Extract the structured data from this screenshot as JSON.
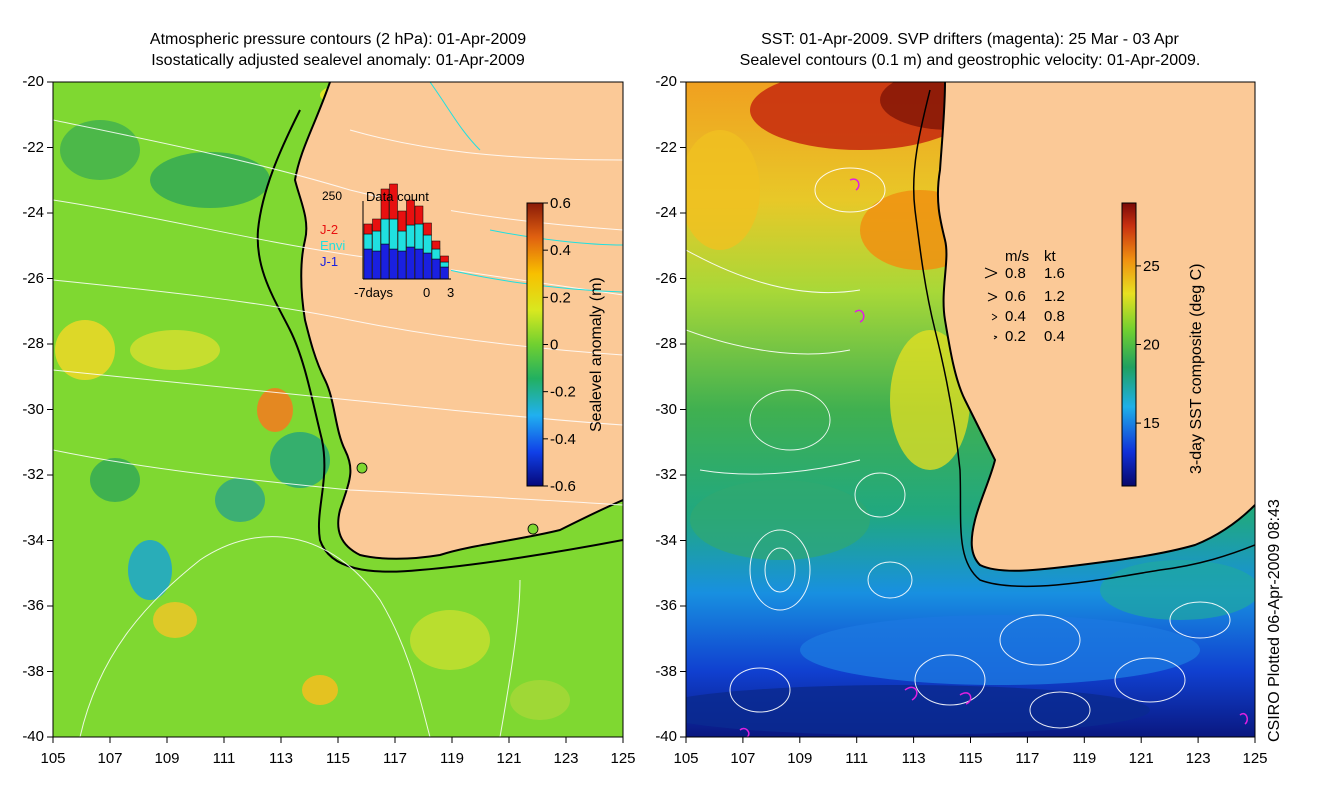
{
  "left_panel": {
    "title_line1": "Atmospheric pressure contours (2 hPa): 01-Apr-2009",
    "title_line2": "Isostatically adjusted sealevel anomaly: 01-Apr-2009",
    "colorbar_label": "Sealevel anomaly (m)",
    "colorbar_ticks": [
      "0.6",
      "0.4",
      "0.2",
      "0",
      "-0.2",
      "-0.4",
      "-0.6"
    ],
    "inset": {
      "title": "Data count",
      "max_label": "250",
      "series": [
        "J-2",
        "Envi",
        "J-1"
      ],
      "xlabels": [
        "-7days",
        "0",
        "3"
      ],
      "colors": {
        "J-2": "#e81010",
        "Envi": "#20e0e0",
        "J-1": "#1a20e0"
      }
    }
  },
  "right_panel": {
    "title_line1": "SST: 01-Apr-2009. SVP drifters (magenta): 25 Mar - 03 Apr",
    "title_line2": "Sealevel contours (0.1 m) and geostrophic velocity: 01-Apr-2009.",
    "colorbar_label": "3-day SST composite (deg C)",
    "colorbar_ticks": [
      "25",
      "20",
      "15"
    ],
    "speed_legend": {
      "headers": [
        "m/s",
        "kt"
      ],
      "rows": [
        [
          "0.8",
          "1.6"
        ],
        [
          "0.6",
          "1.2"
        ],
        [
          "0.4",
          "0.8"
        ],
        [
          "0.2",
          "0.4"
        ]
      ]
    }
  },
  "axes": {
    "lat_labels": [
      "-20",
      "-22",
      "-24",
      "-26",
      "-28",
      "-30",
      "-32",
      "-34",
      "-36",
      "-38",
      "-40"
    ],
    "lon_labels": [
      "105",
      "107",
      "109",
      "111",
      "113",
      "115",
      "117",
      "119",
      "121",
      "123",
      "125"
    ]
  },
  "credit": "CSIRO Plotted 06-Apr-2009 08:43",
  "colors": {
    "land": "#fbc997",
    "ocean_left": "#7fd831",
    "coast": "#000000",
    "contour": "#ffffff",
    "drifter": "#e020e0"
  }
}
